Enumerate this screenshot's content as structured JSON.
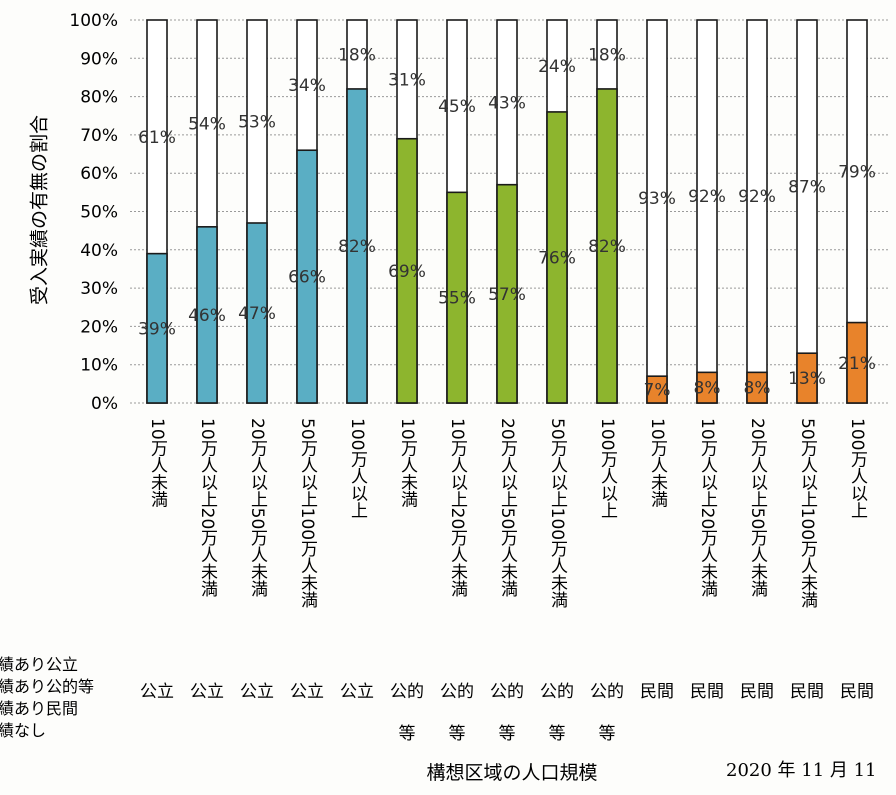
{
  "chart_data": {
    "type": "bar",
    "stacked": true,
    "ylabel": "受入実績の有無の割合",
    "xlabel": "構想区域の人口規模",
    "ylim": [
      0,
      100
    ],
    "y_ticks": [
      "0%",
      "10%",
      "20%",
      "30%",
      "40%",
      "50%",
      "60%",
      "70%",
      "80%",
      "90%",
      "100%"
    ],
    "categories": [
      "10万人未満",
      "10万人以上20万人未満",
      "20万人以上50万人未満",
      "50万人以上100万人未満",
      "100万人以上",
      "10万人未満",
      "10万人以上20万人未満",
      "20万人以上50万人未満",
      "50万人以上100万人未満",
      "100万人以上",
      "10万人未満",
      "10万人以上20万人未満",
      "20万人以上50万人未満",
      "50万人以上100万人未満",
      "100万人以上"
    ],
    "groups": [
      "公立",
      "公立",
      "公立",
      "公立",
      "公立",
      "公的等",
      "公的等",
      "公的等",
      "公的等",
      "公的等",
      "民間",
      "民間",
      "民間",
      "民間",
      "民間"
    ],
    "with_record": [
      39,
      46,
      47,
      66,
      82,
      69,
      55,
      57,
      76,
      82,
      7,
      8,
      8,
      13,
      21
    ],
    "without_record": [
      61,
      54,
      53,
      34,
      18,
      31,
      45,
      43,
      24,
      18,
      93,
      92,
      92,
      87,
      79
    ],
    "with_record_labels": [
      "39%",
      "46%",
      "47%",
      "66%",
      "82%",
      "69%",
      "55%",
      "57%",
      "76%",
      "82%",
      "7%",
      "8%",
      "8%",
      "13%",
      "21%"
    ],
    "without_record_labels": [
      "61%",
      "54%",
      "53%",
      "34%",
      "18%",
      "31%",
      "45%",
      "43%",
      "24%",
      "18%",
      "93%",
      "92%",
      "92%",
      "87%",
      "79%"
    ],
    "legend": [
      "績あり公立",
      "績あり公的等",
      "績あり民間",
      "績なし"
    ],
    "legend_position": "bottom-left",
    "colors": {
      "公立": "#5aaec4",
      "公的等": "#8db52e",
      "民間": "#e8832b",
      "none": "#ffffff",
      "stroke": "#1a1a1a",
      "grid": "#9a9a9a"
    },
    "grid": true
  },
  "date_text": "2020 年 11 月 11"
}
